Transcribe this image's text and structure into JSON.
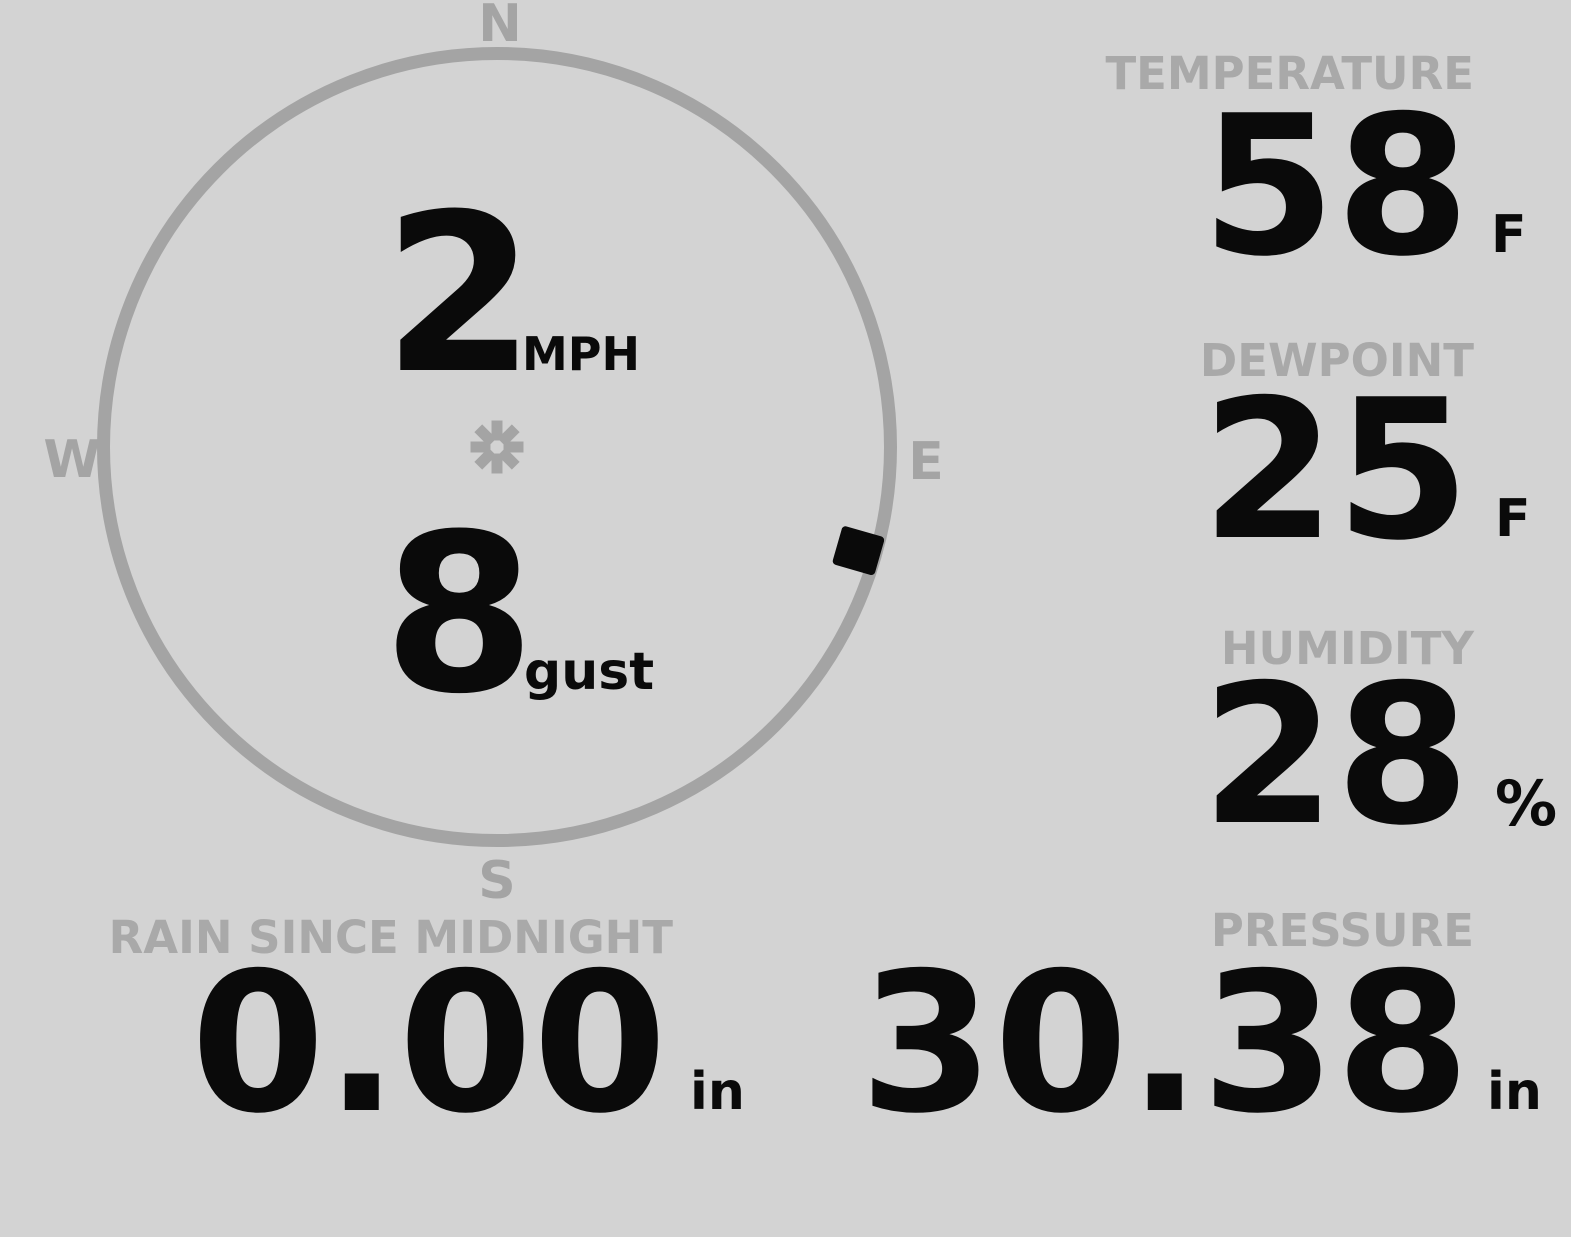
{
  "colors": {
    "background": "#d3d3d3",
    "muted_gray": "#a4a4a4",
    "label_gray": "#a9a9a9",
    "value_black": "#0a0a0a"
  },
  "wind": {
    "speed": "2",
    "speed_unit": "MPH",
    "gust": "8",
    "gust_unit": "gust",
    "direction_degrees": 106,
    "compass": {
      "north": "N",
      "east": "E",
      "south": "S",
      "west": "W"
    }
  },
  "metrics": [
    {
      "id": "temperature",
      "label": "TEMPERATURE",
      "value": "58",
      "unit": "F"
    },
    {
      "id": "dewpoint",
      "label": "DEWPOINT",
      "value": "25",
      "unit": "F"
    },
    {
      "id": "humidity",
      "label": "HUMIDITY",
      "value": "28",
      "unit": "%"
    },
    {
      "id": "rain_since_midnight",
      "label": "RAIN SINCE MIDNIGHT",
      "value": "0.00",
      "unit": "in"
    },
    {
      "id": "pressure",
      "label": "PRESSURE",
      "value": "30.38",
      "unit": "in"
    }
  ]
}
